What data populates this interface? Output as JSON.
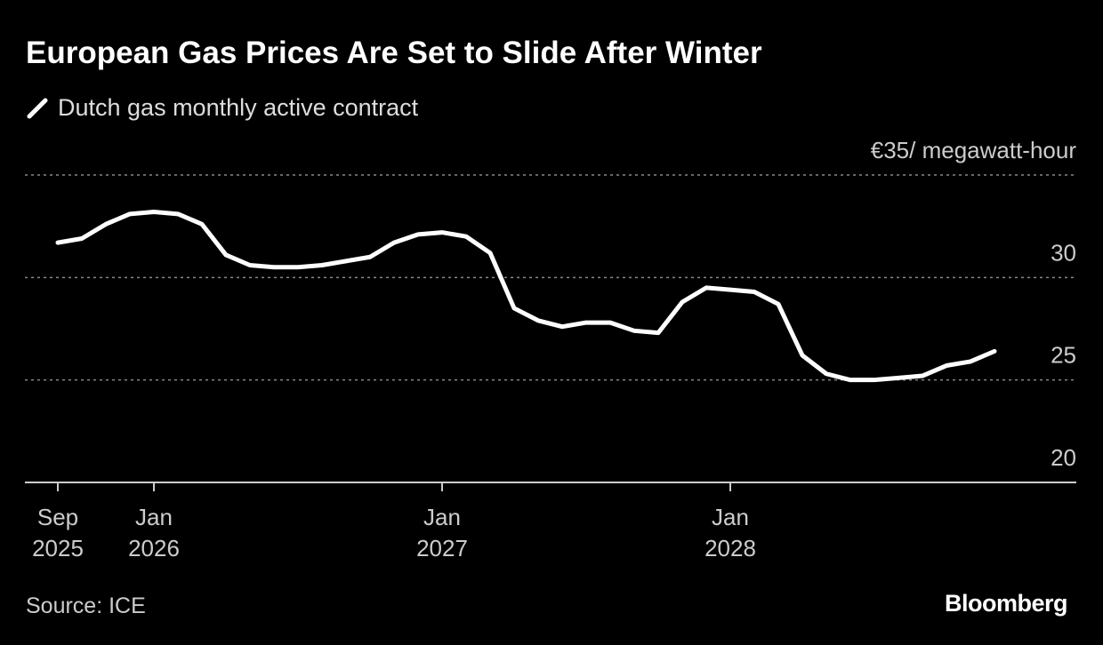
{
  "chart_data": {
    "type": "line",
    "title": "European Gas Prices Are Set to Slide After Winter",
    "source": "Source: ICE",
    "brand": "Bloomberg",
    "categories": [
      "Sep 2025",
      null,
      null,
      null,
      "Jan 2026",
      null,
      null,
      null,
      null,
      null,
      null,
      null,
      null,
      null,
      null,
      null,
      "Jan 2027",
      null,
      null,
      null,
      null,
      null,
      null,
      null,
      null,
      null,
      null,
      null,
      "Jan 2028",
      null,
      null,
      null,
      null,
      null,
      null,
      null,
      null,
      null,
      null,
      null
    ],
    "series": [
      {
        "name": "Dutch gas monthly active contract",
        "color": "#ffffff",
        "values": [
          31.7,
          31.9,
          32.6,
          33.1,
          33.2,
          33.1,
          32.6,
          31.1,
          30.6,
          30.5,
          30.5,
          30.6,
          30.8,
          31.0,
          31.7,
          32.1,
          32.2,
          32.0,
          31.2,
          28.5,
          27.9,
          27.6,
          27.8,
          27.8,
          27.4,
          27.3,
          28.8,
          29.5,
          29.4,
          29.3,
          28.7,
          26.2,
          25.3,
          25.0,
          25.0,
          25.1,
          25.2,
          25.7,
          25.9,
          26.4
        ]
      }
    ],
    "ylim": [
      20,
      35
    ],
    "yticks": [
      20,
      25,
      30,
      {
        "value": 35,
        "label": "€35/ megawatt-hour"
      }
    ],
    "grid": true
  }
}
